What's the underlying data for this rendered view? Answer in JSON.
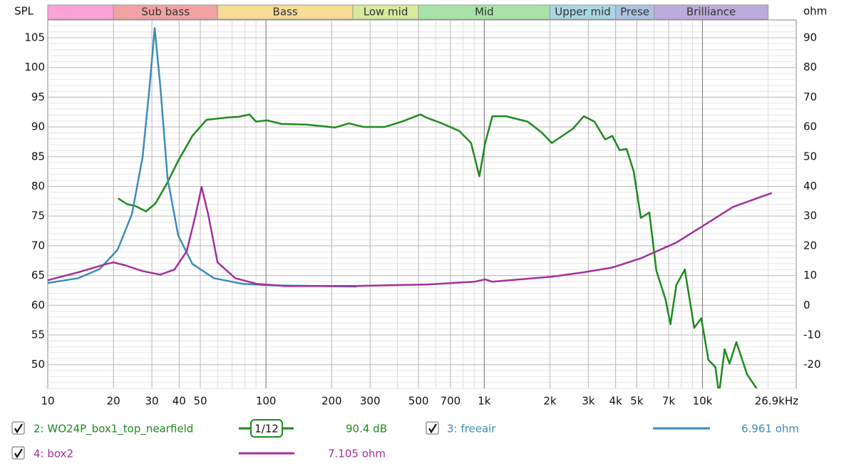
{
  "chart_data": {
    "type": "line",
    "y_label": "SPL",
    "y2_label": "ohm",
    "xlim": [
      10,
      26900
    ],
    "ylim": [
      46,
      108
    ],
    "y2lim": [
      -28,
      96
    ],
    "log_x": true,
    "grid": true,
    "xticks": [
      10,
      20,
      30,
      40,
      50,
      100,
      200,
      300,
      500,
      700,
      {
        "value": 1000,
        "label": "1k"
      },
      {
        "value": 2000,
        "label": "2k"
      },
      {
        "value": 3000,
        "label": "3k"
      },
      {
        "value": 4000,
        "label": "4k"
      },
      {
        "value": 5000,
        "label": "5k"
      },
      {
        "value": 7000,
        "label": "7k"
      },
      {
        "value": 10000,
        "label": "10k"
      },
      {
        "value": 26900,
        "label": "26.9kHz"
      }
    ],
    "yticks": [
      50,
      55,
      60,
      65,
      70,
      75,
      80,
      85,
      90,
      95,
      100,
      105
    ],
    "y2ticks": [
      -20,
      -10,
      0,
      10,
      20,
      30,
      40,
      50,
      60,
      70,
      80,
      90
    ],
    "bands": [
      {
        "label": null,
        "from": 10,
        "to": 20,
        "color": "#f9a3d8"
      },
      {
        "label": "Sub bass",
        "from": 20,
        "to": 60,
        "color": "#f2a2a2"
      },
      {
        "label": "Bass",
        "from": 60,
        "to": 250,
        "color": "#f6dc95"
      },
      {
        "label": "Low mid",
        "from": 250,
        "to": 500,
        "color": "#d6eb9c"
      },
      {
        "label": "Mid",
        "from": 500,
        "to": 2000,
        "color": "#a7e3a8"
      },
      {
        "label": "Upper mid",
        "from": 2000,
        "to": 4000,
        "color": "#a9d7e4"
      },
      {
        "label": "Prese",
        "from": 4000,
        "to": 6000,
        "color": "#abc4e3"
      },
      {
        "label": "Brilliance",
        "from": 6000,
        "to": 20000,
        "color": "#bcabdc"
      }
    ],
    "series": [
      {
        "name": "2: WO24P_box1_top_nearfield",
        "color": "#1f8a1f",
        "axis": "y",
        "smoothing": "1/12",
        "readout": "90.4 dB",
        "x": [
          21,
          23.1,
          25.2,
          28.2,
          31.1,
          35.4,
          39.6,
          46,
          53.4,
          60,
          67,
          75,
          84,
          90,
          101,
          118,
          153,
          207,
          240,
          280,
          350,
          420,
          510,
          550,
          640,
          770,
          870,
          950,
          1010,
          1090,
          1260,
          1580,
          1830,
          2040,
          2280,
          2550,
          2860,
          3200,
          3580,
          3860,
          4170,
          4490,
          4840,
          5220,
          5710,
          6150,
          6770,
          7130,
          7590,
          8300,
          9170,
          9880,
          10650,
          11460,
          11900,
          12630,
          13300,
          14300,
          16000,
          17700
        ],
        "values": [
          78.0,
          77.0,
          76.7,
          75.8,
          77.1,
          80.7,
          84.3,
          88.5,
          91.2,
          91.4,
          91.6,
          91.7,
          92.1,
          90.9,
          91.1,
          90.5,
          90.4,
          89.9,
          90.6,
          90.0,
          90.0,
          90.9,
          92.1,
          91.5,
          90.6,
          89.3,
          87.3,
          81.7,
          87.3,
          91.8,
          91.8,
          90.9,
          89.1,
          87.3,
          88.5,
          89.7,
          91.8,
          90.9,
          87.9,
          88.5,
          86.1,
          86.3,
          82.5,
          74.7,
          75.6,
          65.8,
          61.0,
          56.8,
          63.4,
          66.0,
          56.2,
          57.8,
          50.8,
          49.6,
          45.0,
          52.6,
          50.2,
          53.8,
          48.4,
          46.0
        ]
      },
      {
        "name": "3: freeair",
        "color": "#3d8db5",
        "axis": "y2",
        "readout": "6.961 ohm",
        "x": [
          10,
          13.8,
          17.3,
          20.9,
          24.3,
          27.2,
          29.3,
          30.9,
          32.8,
          35.4,
          39.6,
          46,
          57.7,
          78,
          105,
          260
        ],
        "values": [
          7.5,
          9.1,
          12.2,
          18.7,
          30.7,
          49.8,
          73.7,
          93.3,
          73.7,
          42.6,
          23.5,
          13.9,
          9.1,
          7.2,
          6.7,
          6.3
        ]
      },
      {
        "name": "4: box2",
        "color": "#a3309b",
        "axis": "y2",
        "readout": "7.105 ohm",
        "x": [
          10,
          13.8,
          18.6,
          20,
          22.5,
          27.2,
          32.8,
          38.1,
          43.3,
          47.7,
          50.7,
          54.3,
          60,
          72.3,
          90.6,
          122,
          260,
          550,
          900,
          1010,
          1090,
          2040,
          2860,
          3860,
          5220,
          7590,
          10250,
          13800,
          20800
        ],
        "values": [
          8.4,
          11.1,
          13.9,
          14.4,
          13.5,
          11.5,
          10.3,
          12.0,
          18.2,
          30.7,
          39.8,
          30.7,
          14.4,
          9.1,
          7.2,
          6.5,
          6.5,
          7.0,
          7.9,
          8.7,
          7.9,
          9.6,
          11.1,
          12.7,
          15.8,
          21.1,
          27.1,
          33.1,
          37.8
        ]
      }
    ]
  }
}
